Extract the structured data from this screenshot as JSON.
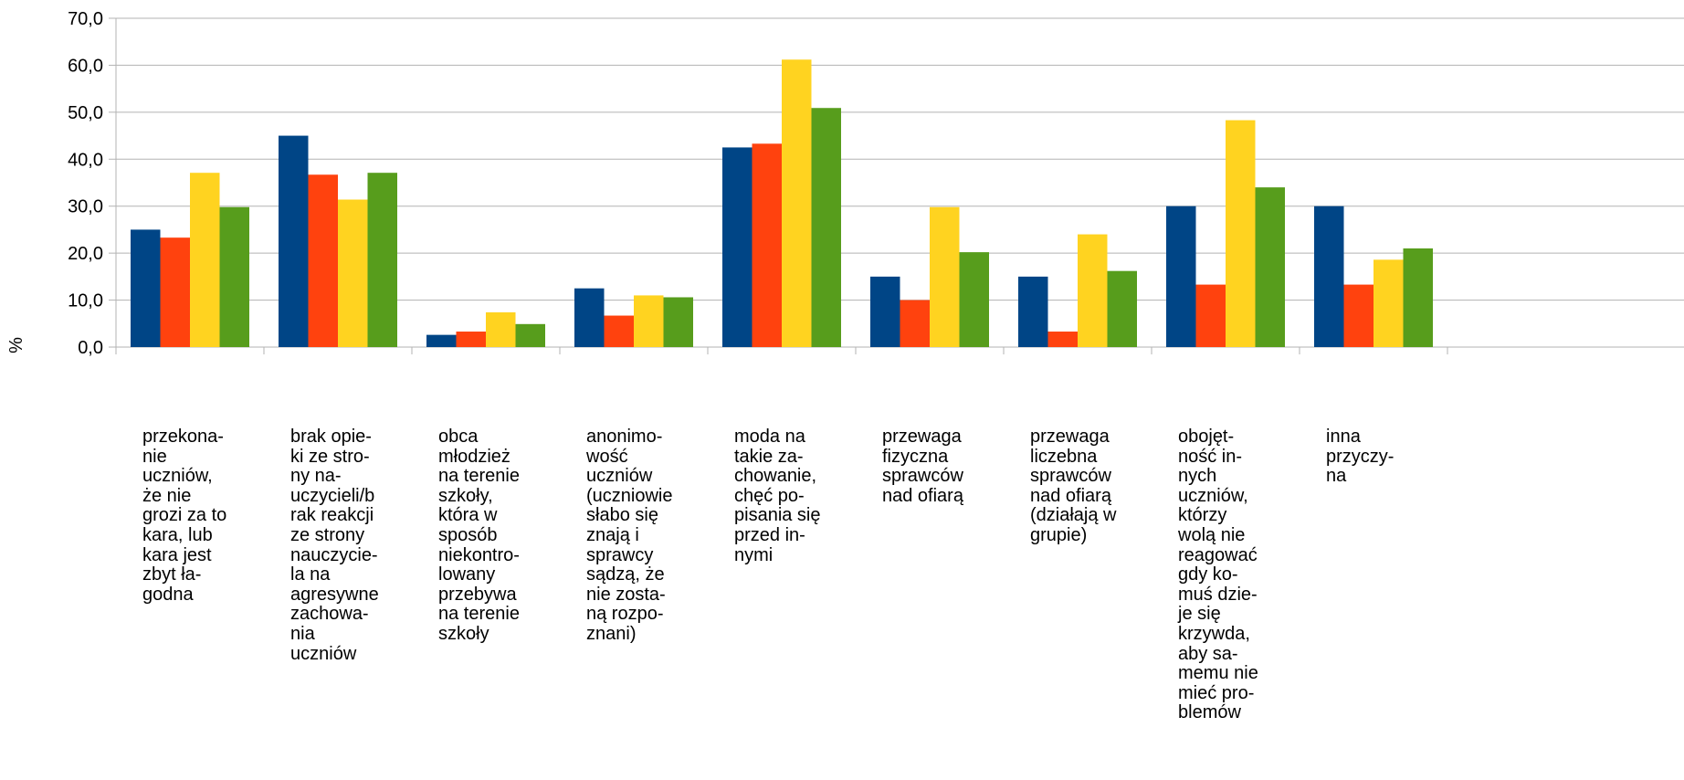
{
  "colors": [
    "#004586",
    "#ff420e",
    "#ffd320",
    "#579d1c"
  ],
  "chart_data": {
    "type": "bar",
    "title": "",
    "xlabel": "",
    "ylabel": "%",
    "ylim": [
      0,
      70
    ],
    "yticks": [
      "0,0",
      "10,0",
      "20,0",
      "30,0",
      "40,0",
      "50,0",
      "60,0",
      "70,0"
    ],
    "grid": true,
    "categories": [
      "przekona-\nnie\nuczniów,\nże nie\ngrozi za to\nkara, lub\nkara jest\nzbyt ła-\ngodna",
      "brak opie-\nki ze stro-\nny na-\nuczycieli/b\nrak reakcji\nze strony\nnauczycie-\nla na\nagresywne\nzachowa-\nnia\nuczniów",
      "obca\nmłodzież\nna terenie\nszkoły,\nktóra w\nsposób\nniekontro-\nlowany\nprzebywa\nna terenie\nszkoły",
      "anonimo-\nwość\nuczniów\n(uczniowie\nsłabo się\nznają i\nsprawcy\nsądzą, że\nnie zosta-\nną rozpo-\nznani)",
      "moda na\ntakie za-\nchowanie,\nchęć po-\npisania się\nprzed in-\nnymi",
      "przewaga\nfizyczna\nsprawców\nnad ofiarą",
      "przewaga\nliczebna\nsprawców\nnad ofiarą\n(działają w\ngrupie)",
      "obojęt-\nność in-\nnych\nuczniów,\nktórzy\nwolą nie\nreagować\ngdy ko-\nmuś dzie-\nje się\nkrzywda,\naby sa-\nmemu nie\nmieć pro-\nblemów",
      "inna\nprzyczy-\nna"
    ],
    "series": [
      {
        "values": [
          25.0,
          45.0,
          2.6,
          12.5,
          42.5,
          15.0,
          15.0,
          30.0,
          30.0
        ]
      },
      {
        "values": [
          23.3,
          36.7,
          3.3,
          6.7,
          43.3,
          10.0,
          3.3,
          13.3,
          13.3
        ]
      },
      {
        "values": [
          37.1,
          31.4,
          7.4,
          11.0,
          61.2,
          29.8,
          24.0,
          48.3,
          18.6
        ]
      },
      {
        "values": [
          29.8,
          37.1,
          4.9,
          10.6,
          50.9,
          20.2,
          16.2,
          34.0,
          21.0
        ]
      }
    ]
  }
}
